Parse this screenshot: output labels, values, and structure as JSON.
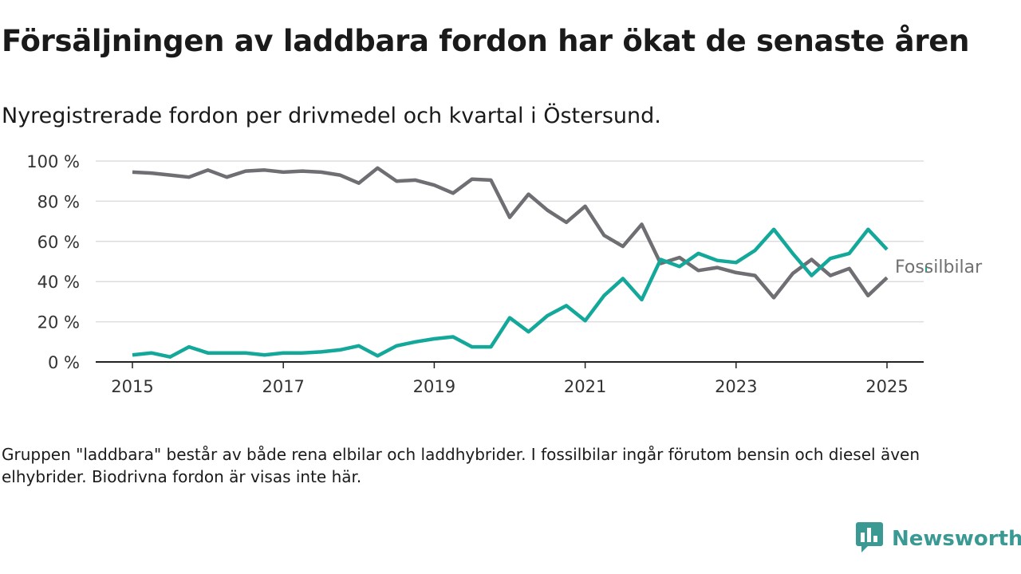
{
  "title": "Försäljningen av laddbara fordon har ökat de senaste åren",
  "subtitle": "Nyregistrerade fordon per drivmedel och kvartal i Östersund.",
  "note": "Gruppen \"laddbara\" består av både rena elbilar och laddhybrider. I fossilbilar ingår förutom bensin och diesel även elhybrider. Biodrivna fordon är visas inte här.",
  "brand": {
    "name": "Newsworthy",
    "icon": "newsworthy-logo-icon",
    "color": "#3a9a93"
  },
  "chart_data": {
    "type": "line",
    "title": "Försäljningen av laddbara fordon har ökat de senaste åren",
    "subtitle": "Nyregistrerade fordon per drivmedel och kvartal i Östersund.",
    "xlabel": "",
    "ylabel": "",
    "x_ticks": [
      "2015",
      "2017",
      "2019",
      "2021",
      "2023",
      "2025"
    ],
    "y_ticks": [
      "0 %",
      "20 %",
      "40 %",
      "60 %",
      "80 %",
      "100 %"
    ],
    "ylim": [
      0,
      100
    ],
    "xlim": [
      "2015-Q1",
      "2025-Q1"
    ],
    "grid": "horizontal",
    "x": [
      "2015-Q1",
      "2015-Q2",
      "2015-Q3",
      "2015-Q4",
      "2016-Q1",
      "2016-Q2",
      "2016-Q3",
      "2016-Q4",
      "2017-Q1",
      "2017-Q2",
      "2017-Q3",
      "2017-Q4",
      "2018-Q1",
      "2018-Q2",
      "2018-Q3",
      "2018-Q4",
      "2019-Q1",
      "2019-Q2",
      "2019-Q3",
      "2019-Q4",
      "2020-Q1",
      "2020-Q2",
      "2020-Q3",
      "2020-Q4",
      "2021-Q1",
      "2021-Q2",
      "2021-Q3",
      "2021-Q4",
      "2022-Q1",
      "2022-Q2",
      "2022-Q3",
      "2022-Q4",
      "2023-Q1",
      "2023-Q2",
      "2023-Q3",
      "2023-Q4",
      "2024-Q1",
      "2024-Q2",
      "2024-Q3",
      "2024-Q4",
      "2025-Q1"
    ],
    "series": [
      {
        "name": "Fossilbilar",
        "color": "#6e6e73",
        "values": [
          94.5,
          94,
          93,
          92,
          95.5,
          92,
          95,
          95.5,
          94.5,
          95,
          94.5,
          93,
          89,
          96.5,
          90,
          90.5,
          88,
          84,
          91,
          90.5,
          72,
          83.5,
          75.5,
          69.5,
          77.5,
          63,
          57.5,
          68.5,
          49,
          52,
          45.5,
          47,
          44.5,
          43,
          32,
          44,
          51,
          43,
          46.5,
          33,
          42
        ]
      },
      {
        "name": "",
        "color": "#14a89a",
        "values": [
          3.5,
          4.5,
          2.5,
          7.5,
          4.5,
          4.5,
          4.5,
          3.5,
          4.5,
          4.5,
          5,
          6,
          8,
          3,
          8,
          10,
          11.5,
          12.5,
          7.5,
          7.5,
          22,
          15,
          23,
          28,
          20.5,
          33,
          41.5,
          31,
          51,
          47.5,
          54,
          50.5,
          49.5,
          55.5,
          66,
          54,
          43,
          51.5,
          54,
          66,
          56
        ]
      }
    ]
  }
}
